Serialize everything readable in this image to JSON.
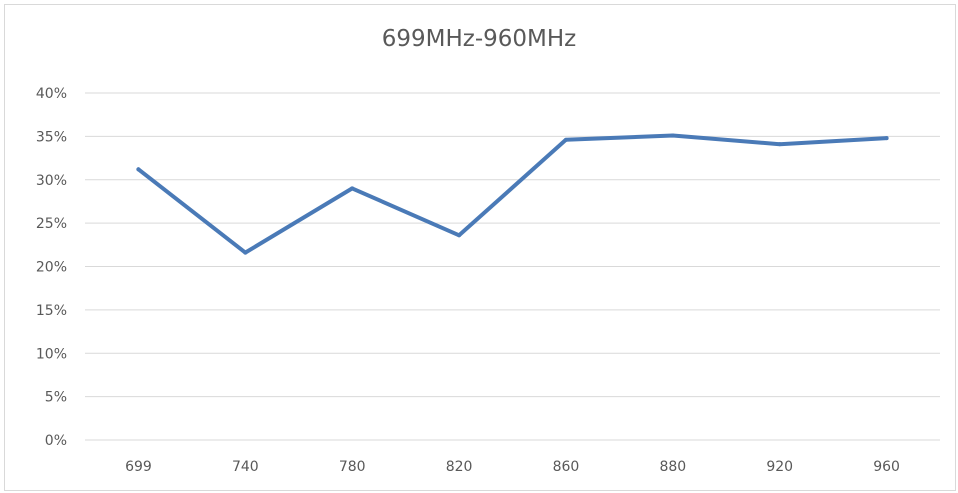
{
  "chart_data": {
    "type": "line",
    "title": "699MHz-960MHz",
    "xlabel": "",
    "ylabel": "",
    "categories": [
      "699",
      "740",
      "780",
      "820",
      "860",
      "880",
      "920",
      "960"
    ],
    "series": [
      {
        "color": "#4a7ab7",
        "values": [
          0.312,
          0.216,
          0.29,
          0.236,
          0.346,
          0.351,
          0.341,
          0.348
        ]
      }
    ],
    "yticks": [
      "0%",
      "5%",
      "10%",
      "15%",
      "20%",
      "25%",
      "30%",
      "35%",
      "40%"
    ],
    "ylim": [
      0,
      0.4
    ],
    "grid": true,
    "legend": "none",
    "colors": {
      "gridline": "#d9d9d9",
      "text": "#595959"
    }
  }
}
